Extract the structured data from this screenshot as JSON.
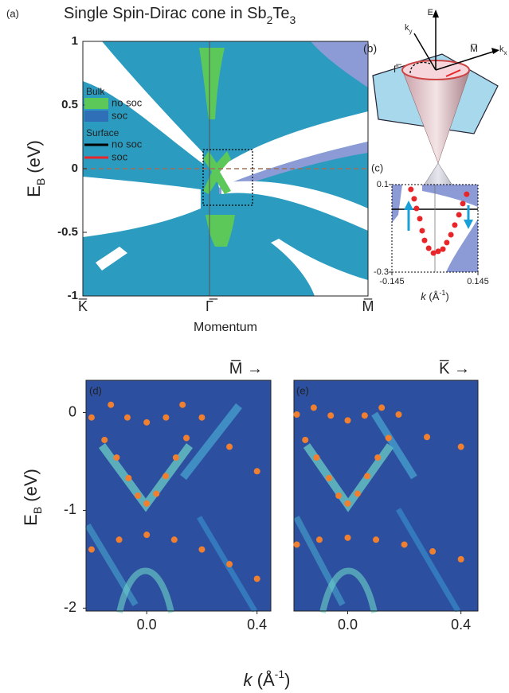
{
  "chart_data": [
    {
      "type": "band-map",
      "panel_label": "(a)",
      "title": [
        "Single Spin-Dirac cone in Sb",
        "2",
        "Te",
        "3"
      ],
      "ylabel": [
        "E",
        "B",
        " (eV)"
      ],
      "xlabel": "Momentum",
      "categories": [
        "K̅",
        "Γ̅",
        "M̅"
      ],
      "ylim": [
        -1,
        1
      ],
      "yticks": [
        -1,
        -0.5,
        0,
        0.5,
        1
      ],
      "legend": [
        {
          "title": "Bulk",
          "items": [
            {
              "name": "no soc",
              "color": "#5cc85a"
            },
            {
              "name": "soc",
              "color": "#2f6fb8"
            }
          ]
        },
        {
          "title": "Surface",
          "items": [
            {
              "name": "no soc",
              "color": "#000000"
            },
            {
              "name": "soc",
              "color": "#e8262a"
            }
          ]
        }
      ]
    },
    {
      "type": "scatter",
      "panel_label": "(c)",
      "xlabel": [
        "k",
        " (Å",
        "-1",
        ")"
      ],
      "xlim": [
        -0.145,
        0.145
      ],
      "xticks": [
        -0.145,
        0.145
      ],
      "ylim": [
        -0.3,
        0.1
      ],
      "yticks": [
        -0.3,
        0.1
      ],
      "series": [
        {
          "color": "#e8262a",
          "x": [
            -0.081,
            -0.07,
            -0.062,
            -0.051,
            -0.043,
            -0.035,
            -0.021,
            -0.005,
            0.011,
            0.027,
            0.04,
            0.054,
            0.067,
            0.081,
            0.094,
            0.107
          ],
          "values": [
            0.078,
            0.035,
            -0.009,
            -0.056,
            -0.111,
            -0.155,
            -0.191,
            -0.213,
            -0.205,
            -0.195,
            -0.165,
            -0.129,
            -0.085,
            -0.038,
            0.013,
            0.056
          ]
        }
      ]
    },
    {
      "type": "scatter",
      "panel_label": "(d)",
      "direction": "M̅ →",
      "xlim": [
        -0.22,
        0.45
      ],
      "xticks": [
        {
          "value": 0,
          "label": "0.0"
        },
        0.4
      ],
      "ylim": [
        -2.03,
        0.33
      ],
      "yticks": [
        -2,
        -1,
        0
      ],
      "series": [
        {
          "color": "#f08030",
          "x": [
            -0.153,
            -0.109,
            -0.066,
            -0.032,
            0,
            0.035,
            0.069,
            0.106,
            0.144
          ],
          "values": [
            -0.28,
            -0.46,
            -0.67,
            -0.85,
            -0.93,
            -0.83,
            -0.65,
            -0.46,
            -0.26
          ]
        },
        {
          "color": "#f08030",
          "x": [
            -0.2,
            -0.13,
            -0.07,
            0,
            0.07,
            0.13,
            0.2,
            0.3,
            0.4
          ],
          "values": [
            -0.05,
            0.08,
            -0.05,
            -0.1,
            -0.05,
            0.08,
            -0.05,
            -0.35,
            -0.6
          ]
        },
        {
          "color": "#f08030",
          "x": [
            -0.2,
            -0.1,
            0,
            0.1,
            0.2,
            0.3,
            0.4
          ],
          "values": [
            -1.4,
            -1.3,
            -1.25,
            -1.3,
            -1.4,
            -1.55,
            -1.7
          ]
        }
      ]
    },
    {
      "type": "scatter",
      "panel_label": "(e)",
      "direction": "K̅ →",
      "xlim": [
        -0.19,
        0.46
      ],
      "xticks": [
        {
          "value": 0,
          "label": "0.0"
        },
        0.4
      ],
      "ylim": [
        -2.03,
        0.33
      ],
      "series": [
        {
          "color": "#f08030",
          "x": [
            -0.15,
            -0.11,
            -0.066,
            -0.032,
            0,
            0.035,
            0.069,
            0.106,
            0.144
          ],
          "values": [
            -0.28,
            -0.46,
            -0.67,
            -0.85,
            -0.93,
            -0.83,
            -0.65,
            -0.46,
            -0.26
          ]
        },
        {
          "color": "#f08030",
          "x": [
            -0.18,
            -0.12,
            -0.06,
            0,
            0.06,
            0.12,
            0.18,
            0.28,
            0.4
          ],
          "values": [
            -0.02,
            0.05,
            -0.03,
            -0.08,
            -0.03,
            0.05,
            -0.02,
            -0.25,
            -0.35
          ]
        },
        {
          "color": "#f08030",
          "x": [
            -0.18,
            -0.1,
            0,
            0.1,
            0.2,
            0.3,
            0.4
          ],
          "values": [
            -1.35,
            -1.3,
            -1.28,
            -1.3,
            -1.35,
            -1.42,
            -1.5
          ]
        }
      ]
    }
  ],
  "panel_b": {
    "label": "(b)",
    "axis_e": "E",
    "axis_ky": [
      "k",
      "y"
    ],
    "axis_kx": [
      "k",
      "x"
    ],
    "gamma": "Γ̅",
    "m": "M̅"
  },
  "figure_labels": {
    "xlabel": [
      "k",
      " (Å",
      "-1",
      ")"
    ],
    "ylabel": [
      "E",
      "B",
      " (eV)"
    ]
  }
}
